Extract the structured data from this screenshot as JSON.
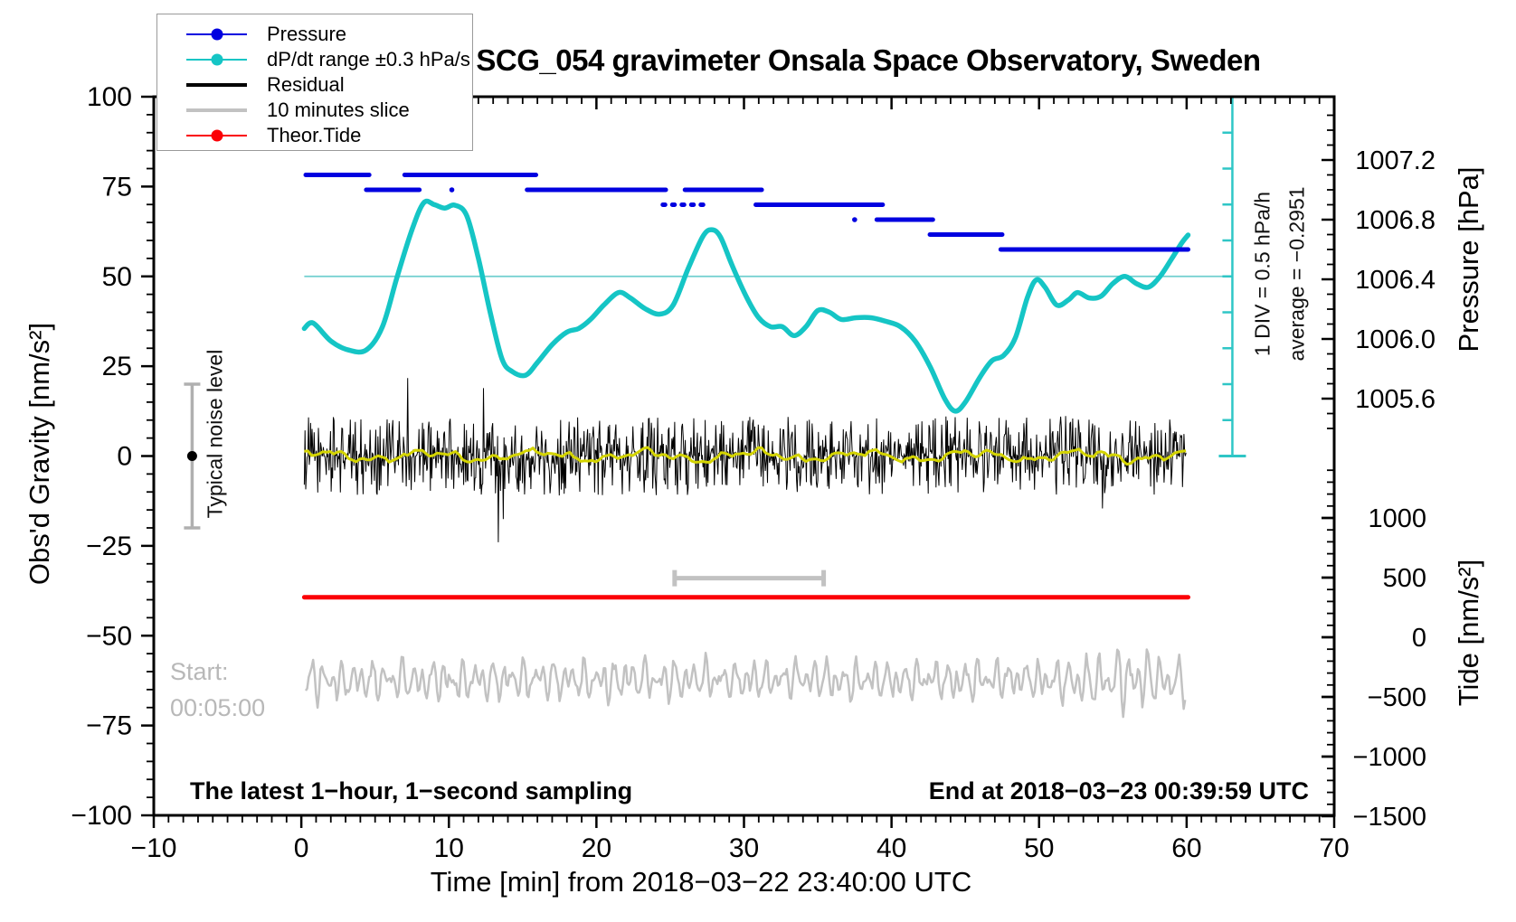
{
  "title": "SCG_054 gravimeter Onsala Space Observatory, Sweden",
  "legend": {
    "items": [
      {
        "label": "Pressure",
        "color": "#0000e0",
        "thick": 2,
        "dot": true
      },
      {
        "label": "dP/dt range ±0.3 hPa/s",
        "color": "#15c5c5",
        "thick": 2,
        "dot": true
      },
      {
        "label": "Residual",
        "color": "#000000",
        "thick": 4,
        "dot": false
      },
      {
        "label": "10 minutes slice",
        "color": "#c2c2c2",
        "thick": 4,
        "dot": false
      },
      {
        "label": "Theor.Tide",
        "color": "#fb0006",
        "thick": 2,
        "dot": true
      }
    ]
  },
  "annotations": {
    "typical_noise": "Typical noise level",
    "div_scale": "1 DIV = 0.5 hPa/h",
    "average": "average = −0.2951",
    "start_line1": "Start:",
    "start_line2": "00:05:00",
    "bottom_left": "The latest 1−hour, 1−second sampling",
    "bottom_right": "End at 2018−03−23 00:39:59 UTC"
  },
  "axes": {
    "x": {
      "label": "Time [min] from 2018−03−22 23:40:00 UTC",
      "min": -10,
      "max": 70,
      "major_ticks": [
        -10,
        0,
        10,
        20,
        30,
        40,
        50,
        60,
        70
      ],
      "tick_labels": [
        "−10",
        "0",
        "10",
        "20",
        "30",
        "40",
        "50",
        "60",
        "70"
      ],
      "minor_step": 1
    },
    "gravity": {
      "label": "Obs'd Gravity [nm/s²]",
      "min": -100,
      "max": 100,
      "major_ticks": [
        100,
        75,
        50,
        25,
        0,
        -25,
        -50,
        -75,
        -100
      ],
      "tick_labels": [
        "100",
        "75",
        "50",
        "25",
        "0",
        "−25",
        "−50",
        "−75",
        "−100"
      ],
      "minor_step": 5
    },
    "pressure": {
      "label": "Pressure [hPa]",
      "major_ticks": [
        1007.2,
        1006.8,
        1006.4,
        1006.0,
        1005.6
      ],
      "tick_labels": [
        "1007.2",
        "1006.8",
        "1006.4",
        "1006.0",
        "1005.6"
      ],
      "minor_step": 0.1,
      "minor_range": [
        1005.4,
        1007.5
      ]
    },
    "tide": {
      "label": "Tide [nm/s²]",
      "major_ticks": [
        1000,
        500,
        0,
        -500,
        -1000,
        -1500
      ],
      "tick_labels": [
        "1000",
        "500",
        "0",
        "−500",
        "−1000",
        "−1500"
      ],
      "minor_step": 100,
      "minor_range": [
        -1400,
        1400
      ]
    }
  },
  "chart_data": {
    "type": "line",
    "title": "SCG_054 gravimeter Onsala Space Observatory, Sweden",
    "xlabel": "Time [min] from 2018−03−22 23:40:00 UTC",
    "x_range_min": [
      -10,
      70
    ],
    "gravity_axis_range": [
      -100,
      100
    ],
    "pressure_axis_ticks_hPa": [
      1007.2,
      1006.8,
      1006.4,
      1006.0,
      1005.6
    ],
    "tide_axis_ticks": [
      1000,
      500,
      0,
      -500,
      -1000,
      -1500
    ],
    "legend_position": "top-left",
    "grid": false,
    "series": [
      {
        "name": "Pressure",
        "type": "step_segments",
        "unit": "hPa",
        "color": "#0000e0",
        "segments": [
          {
            "hPa": 1007.1,
            "t0": 0.3,
            "t1": 4.6,
            "style": "solid"
          },
          {
            "hPa": 1007.1,
            "t0": 7.0,
            "t1": 15.9,
            "style": "solid"
          },
          {
            "hPa": 1007.0,
            "t0": 4.4,
            "t1": 8.0,
            "style": "solid"
          },
          {
            "hPa": 1007.0,
            "t0": 10.2,
            "t1": 10.2,
            "style": "dot"
          },
          {
            "hPa": 1007.0,
            "t0": 15.3,
            "t1": 24.7,
            "style": "solid"
          },
          {
            "hPa": 1007.0,
            "t0": 26.0,
            "t1": 31.2,
            "style": "solid"
          },
          {
            "hPa": 1006.9,
            "t0": 24.5,
            "t1": 27.3,
            "style": "sparse"
          },
          {
            "hPa": 1006.9,
            "t0": 30.8,
            "t1": 39.4,
            "style": "solid"
          },
          {
            "hPa": 1006.8,
            "t0": 37.5,
            "t1": 37.5,
            "style": "dot"
          },
          {
            "hPa": 1006.8,
            "t0": 39.0,
            "t1": 42.8,
            "style": "solid"
          },
          {
            "hPa": 1006.7,
            "t0": 42.6,
            "t1": 47.5,
            "style": "solid"
          },
          {
            "hPa": 1006.6,
            "t0": 47.4,
            "t1": 60.1,
            "style": "solid"
          }
        ]
      },
      {
        "name": "dP/dt",
        "legend": "dP/dt range ±0.3 hPa/s",
        "type": "smooth_line",
        "color": "#15c5c5",
        "note": "plotted against gravity-axis units; 1 DIV = 0.5 hPa/h",
        "points": [
          [
            0.2,
            35.5
          ],
          [
            0.8,
            37
          ],
          [
            2,
            32
          ],
          [
            3.2,
            29.5
          ],
          [
            4.4,
            29.5
          ],
          [
            5.5,
            36
          ],
          [
            6.5,
            50
          ],
          [
            7.5,
            63
          ],
          [
            8.3,
            70.5
          ],
          [
            9,
            70
          ],
          [
            9.7,
            69
          ],
          [
            10.4,
            69.8
          ],
          [
            11.2,
            67
          ],
          [
            12,
            55
          ],
          [
            12.8,
            40
          ],
          [
            13.6,
            27
          ],
          [
            14.3,
            23.5
          ],
          [
            15.2,
            22.5
          ],
          [
            16,
            26
          ],
          [
            17,
            31
          ],
          [
            18,
            34.5
          ],
          [
            18.8,
            35.5
          ],
          [
            19.6,
            38
          ],
          [
            20.5,
            42
          ],
          [
            21.5,
            45.5
          ],
          [
            22.3,
            44
          ],
          [
            23.3,
            41
          ],
          [
            24.3,
            39.5
          ],
          [
            25.2,
            42
          ],
          [
            26.2,
            52
          ],
          [
            27.2,
            61
          ],
          [
            27.8,
            63
          ],
          [
            28.4,
            61
          ],
          [
            29.2,
            53
          ],
          [
            30.2,
            44
          ],
          [
            31,
            38.5
          ],
          [
            31.8,
            36
          ],
          [
            32.6,
            36
          ],
          [
            33.4,
            33.5
          ],
          [
            34.2,
            36
          ],
          [
            35,
            40.5
          ],
          [
            35.8,
            40
          ],
          [
            36.6,
            38
          ],
          [
            37.6,
            38.5
          ],
          [
            38.6,
            38.5
          ],
          [
            39.6,
            37.5
          ],
          [
            40.6,
            36
          ],
          [
            41.6,
            32
          ],
          [
            42.6,
            25
          ],
          [
            43.6,
            16
          ],
          [
            44.3,
            12.5
          ],
          [
            45,
            15
          ],
          [
            46,
            22
          ],
          [
            46.8,
            26.5
          ],
          [
            47.6,
            28
          ],
          [
            48.4,
            33
          ],
          [
            49.2,
            44
          ],
          [
            49.8,
            49
          ],
          [
            50.4,
            47
          ],
          [
            51.2,
            42
          ],
          [
            52,
            43.5
          ],
          [
            52.6,
            45.5
          ],
          [
            53.4,
            44
          ],
          [
            54.2,
            44.5
          ],
          [
            55,
            48
          ],
          [
            55.8,
            50
          ],
          [
            56.6,
            48
          ],
          [
            57.4,
            47
          ],
          [
            58.2,
            50
          ],
          [
            59,
            55
          ],
          [
            59.7,
            59.5
          ],
          [
            60.1,
            61.5
          ]
        ]
      },
      {
        "name": "dP/dt zero reference",
        "type": "hline",
        "gravity_value": 50,
        "t_range": [
          0.2,
          63.1
        ],
        "color": "#6fcfcf"
      },
      {
        "name": "Residual",
        "type": "noise",
        "color": "#000000",
        "center_gravity": 0,
        "typical_amplitude": 9,
        "max_spike": 24,
        "t_range": [
          0.2,
          60
        ],
        "sampling": "1-second"
      },
      {
        "name": "Residual smoothed",
        "type": "smooth_noise",
        "color": "#d4d400",
        "center_gravity": 0,
        "amplitude": 1.5,
        "t_range": [
          0.2,
          60
        ]
      },
      {
        "name": "Theor.Tide",
        "type": "hline",
        "tide_value": 345,
        "gravity_value": -39.3,
        "t_range": [
          0.2,
          60.1
        ],
        "color": "#fb0006"
      },
      {
        "name": "10 minutes slice",
        "type": "noise_wave",
        "color": "#c2c2c2",
        "center_gravity": -62.3,
        "typical_amplitude": 7,
        "burst_center_t": 55.3,
        "t_range": [
          0.3,
          60
        ]
      }
    ],
    "markers": {
      "noise_errorbar": {
        "t": -7.4,
        "gravity_center": 0,
        "gravity_halfspan": 20,
        "bar_color": "#b0b0b0",
        "dot_color": "#000000"
      },
      "slice_scalebar": {
        "t_range": [
          25.3,
          35.4
        ],
        "gravity_value": -34,
        "color": "#c2c2c2"
      },
      "div_errorbar": {
        "t": 63.1,
        "gravity_range": [
          0,
          100
        ],
        "divisions": 10,
        "color": "#2fc6c6"
      }
    }
  }
}
